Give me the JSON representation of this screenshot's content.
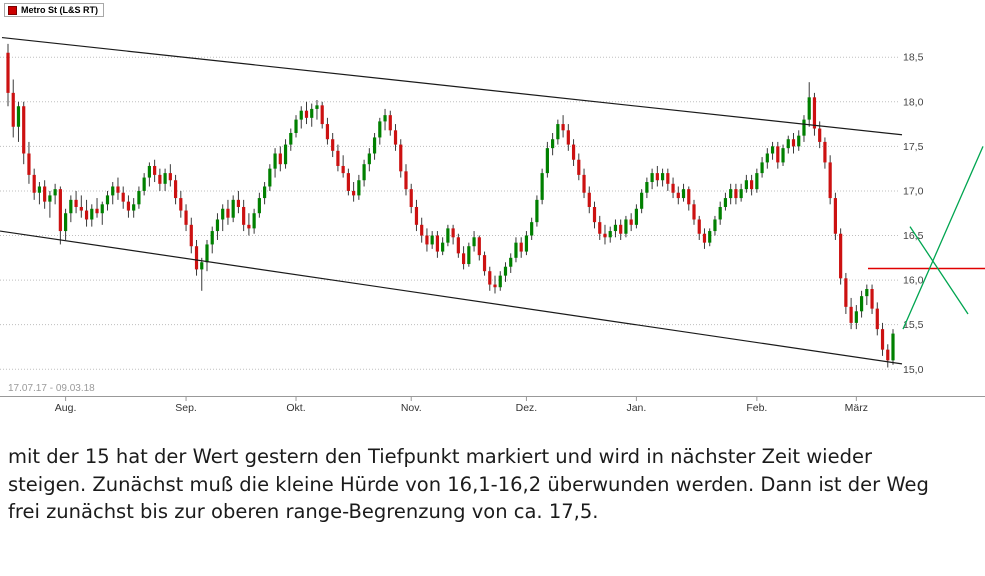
{
  "legend": {
    "label": "Metro St (L&S RT)",
    "marker_color": "#cc0000"
  },
  "commentary": {
    "lines": [
      "mit der 15 hat der Wert gestern den Tiefpunkt markiert und wird in nächster Zeit wieder",
      "steigen. Zunächst muß die kleine Hürde von 16,1-16,2 überwunden werden. Dann ist der Weg",
      "frei zunächst bis zur oberen range-Begrenzung von ca. 17,5."
    ]
  },
  "chart_data": {
    "type": "candlestick",
    "title": "Metro St (L&S RT)",
    "date_range": "17.07.17 - 09.03.18",
    "ylim": [
      14.7,
      18.85
    ],
    "y_ticks": [
      15.0,
      15.5,
      16.0,
      16.5,
      17.0,
      17.5,
      18.0,
      18.5
    ],
    "y_tick_labels": [
      "15,0",
      "15,5",
      "16,0",
      "16,5",
      "17,0",
      "17,5",
      "18,0",
      "18,5"
    ],
    "x_ticks": [
      {
        "label": "Aug.",
        "index": 11
      },
      {
        "label": "Sep.",
        "index": 34
      },
      {
        "label": "Okt.",
        "index": 55
      },
      {
        "label": "Nov.",
        "index": 77
      },
      {
        "label": "Dez.",
        "index": 99
      },
      {
        "label": "Jan.",
        "index": 120
      },
      {
        "label": "Feb.",
        "index": 143
      },
      {
        "label": "März",
        "index": 162
      }
    ],
    "colors": {
      "up": "#008000",
      "down": "#cc1111",
      "wick": "#3a3a3a",
      "grid": "#bfbfbf",
      "axis": "#999999",
      "trend": "#1a1a1a",
      "resistance": "#e00000",
      "projection": "#00a550",
      "labels": "#444444",
      "date": "#9a9a9a"
    },
    "candles": [
      [
        18.55,
        18.65,
        17.95,
        18.1
      ],
      [
        18.1,
        18.25,
        17.6,
        17.72
      ],
      [
        17.72,
        18.0,
        17.55,
        17.95
      ],
      [
        17.95,
        18.0,
        17.3,
        17.42
      ],
      [
        17.42,
        17.55,
        17.08,
        17.18
      ],
      [
        17.18,
        17.25,
        16.9,
        16.98
      ],
      [
        16.98,
        17.1,
        16.85,
        17.05
      ],
      [
        17.05,
        17.12,
        16.8,
        16.88
      ],
      [
        16.88,
        17.0,
        16.7,
        16.95
      ],
      [
        16.95,
        17.08,
        16.85,
        17.02
      ],
      [
        17.02,
        17.05,
        16.4,
        16.55
      ],
      [
        16.55,
        16.8,
        16.45,
        16.75
      ],
      [
        16.75,
        16.95,
        16.65,
        16.9
      ],
      [
        16.9,
        17.0,
        16.75,
        16.82
      ],
      [
        16.82,
        16.95,
        16.7,
        16.78
      ],
      [
        16.78,
        16.9,
        16.6,
        16.68
      ],
      [
        16.68,
        16.85,
        16.6,
        16.8
      ],
      [
        16.8,
        16.92,
        16.7,
        16.75
      ],
      [
        16.75,
        16.88,
        16.62,
        16.85
      ],
      [
        16.85,
        17.0,
        16.78,
        16.95
      ],
      [
        16.95,
        17.1,
        16.85,
        17.05
      ],
      [
        17.05,
        17.15,
        16.9,
        16.98
      ],
      [
        16.98,
        17.05,
        16.8,
        16.88
      ],
      [
        16.88,
        16.95,
        16.7,
        16.78
      ],
      [
        16.78,
        16.92,
        16.7,
        16.85
      ],
      [
        16.85,
        17.05,
        16.8,
        17.0
      ],
      [
        17.0,
        17.2,
        16.95,
        17.15
      ],
      [
        17.15,
        17.32,
        17.05,
        17.28
      ],
      [
        17.28,
        17.35,
        17.1,
        17.18
      ],
      [
        17.18,
        17.25,
        17.0,
        17.08
      ],
      [
        17.08,
        17.25,
        17.0,
        17.2
      ],
      [
        17.2,
        17.3,
        17.05,
        17.12
      ],
      [
        17.12,
        17.18,
        16.85,
        16.92
      ],
      [
        16.92,
        17.0,
        16.7,
        16.78
      ],
      [
        16.78,
        16.85,
        16.55,
        16.62
      ],
      [
        16.62,
        16.7,
        16.3,
        16.38
      ],
      [
        16.38,
        16.45,
        16.05,
        16.12
      ],
      [
        16.12,
        16.25,
        15.88,
        16.2
      ],
      [
        16.2,
        16.45,
        16.1,
        16.4
      ],
      [
        16.4,
        16.6,
        16.3,
        16.55
      ],
      [
        16.55,
        16.75,
        16.45,
        16.68
      ],
      [
        16.68,
        16.85,
        16.55,
        16.8
      ],
      [
        16.8,
        16.9,
        16.62,
        16.7
      ],
      [
        16.7,
        16.95,
        16.65,
        16.9
      ],
      [
        16.9,
        17.0,
        16.75,
        16.82
      ],
      [
        16.82,
        16.9,
        16.55,
        16.62
      ],
      [
        16.62,
        16.75,
        16.5,
        16.58
      ],
      [
        16.58,
        16.8,
        16.52,
        16.75
      ],
      [
        16.75,
        16.98,
        16.7,
        16.92
      ],
      [
        16.92,
        17.1,
        16.85,
        17.05
      ],
      [
        17.05,
        17.3,
        17.0,
        17.25
      ],
      [
        17.25,
        17.48,
        17.15,
        17.42
      ],
      [
        17.42,
        17.5,
        17.22,
        17.3
      ],
      [
        17.3,
        17.58,
        17.25,
        17.52
      ],
      [
        17.52,
        17.7,
        17.45,
        17.65
      ],
      [
        17.65,
        17.85,
        17.6,
        17.8
      ],
      [
        17.8,
        17.95,
        17.7,
        17.9
      ],
      [
        17.9,
        18.0,
        17.75,
        17.82
      ],
      [
        17.82,
        17.98,
        17.72,
        17.92
      ],
      [
        17.92,
        18.02,
        17.8,
        17.96
      ],
      [
        17.96,
        18.0,
        17.7,
        17.75
      ],
      [
        17.75,
        17.82,
        17.52,
        17.58
      ],
      [
        17.58,
        17.65,
        17.38,
        17.45
      ],
      [
        17.45,
        17.52,
        17.22,
        17.28
      ],
      [
        17.28,
        17.4,
        17.15,
        17.2
      ],
      [
        17.2,
        17.25,
        16.95,
        17.0
      ],
      [
        17.0,
        17.1,
        16.88,
        16.95
      ],
      [
        16.95,
        17.18,
        16.9,
        17.12
      ],
      [
        17.12,
        17.35,
        17.05,
        17.3
      ],
      [
        17.3,
        17.48,
        17.22,
        17.42
      ],
      [
        17.42,
        17.65,
        17.35,
        17.6
      ],
      [
        17.6,
        17.82,
        17.52,
        17.78
      ],
      [
        17.78,
        17.92,
        17.68,
        17.85
      ],
      [
        17.85,
        17.9,
        17.62,
        17.68
      ],
      [
        17.68,
        17.75,
        17.45,
        17.52
      ],
      [
        17.52,
        17.58,
        17.15,
        17.22
      ],
      [
        17.22,
        17.3,
        16.95,
        17.02
      ],
      [
        17.02,
        17.08,
        16.75,
        16.82
      ],
      [
        16.82,
        16.9,
        16.55,
        16.62
      ],
      [
        16.62,
        16.7,
        16.42,
        16.5
      ],
      [
        16.5,
        16.58,
        16.32,
        16.4
      ],
      [
        16.4,
        16.55,
        16.35,
        16.5
      ],
      [
        16.5,
        16.55,
        16.25,
        16.32
      ],
      [
        16.32,
        16.48,
        16.28,
        16.42
      ],
      [
        16.42,
        16.62,
        16.38,
        16.58
      ],
      [
        16.58,
        16.62,
        16.4,
        16.48
      ],
      [
        16.48,
        16.52,
        16.25,
        16.3
      ],
      [
        16.3,
        16.38,
        16.12,
        16.18
      ],
      [
        16.18,
        16.42,
        16.15,
        16.38
      ],
      [
        16.38,
        16.55,
        16.32,
        16.48
      ],
      [
        16.48,
        16.5,
        16.22,
        16.28
      ],
      [
        16.28,
        16.32,
        16.05,
        16.1
      ],
      [
        16.1,
        16.15,
        15.88,
        15.95
      ],
      [
        15.95,
        16.05,
        15.85,
        15.92
      ],
      [
        15.92,
        16.1,
        15.88,
        16.05
      ],
      [
        16.05,
        16.2,
        15.98,
        16.15
      ],
      [
        16.15,
        16.3,
        16.08,
        16.25
      ],
      [
        16.25,
        16.48,
        16.2,
        16.42
      ],
      [
        16.42,
        16.48,
        16.25,
        16.32
      ],
      [
        16.32,
        16.55,
        16.28,
        16.5
      ],
      [
        16.5,
        16.7,
        16.45,
        16.65
      ],
      [
        16.65,
        16.95,
        16.6,
        16.9
      ],
      [
        16.9,
        17.25,
        16.85,
        17.2
      ],
      [
        17.2,
        17.55,
        17.15,
        17.48
      ],
      [
        17.48,
        17.65,
        17.4,
        17.58
      ],
      [
        17.58,
        17.8,
        17.52,
        17.75
      ],
      [
        17.75,
        17.85,
        17.6,
        17.68
      ],
      [
        17.68,
        17.75,
        17.45,
        17.52
      ],
      [
        17.52,
        17.58,
        17.28,
        17.35
      ],
      [
        17.35,
        17.42,
        17.12,
        17.18
      ],
      [
        17.18,
        17.25,
        16.92,
        16.98
      ],
      [
        16.98,
        17.05,
        16.75,
        16.82
      ],
      [
        16.82,
        16.88,
        16.58,
        16.65
      ],
      [
        16.65,
        16.72,
        16.45,
        16.52
      ],
      [
        16.52,
        16.62,
        16.4,
        16.48
      ],
      [
        16.48,
        16.6,
        16.42,
        16.55
      ],
      [
        16.55,
        16.68,
        16.48,
        16.62
      ],
      [
        16.62,
        16.68,
        16.45,
        16.52
      ],
      [
        16.52,
        16.72,
        16.48,
        16.68
      ],
      [
        16.68,
        16.75,
        16.55,
        16.62
      ],
      [
        16.62,
        16.85,
        16.58,
        16.8
      ],
      [
        16.8,
        17.02,
        16.75,
        16.98
      ],
      [
        16.98,
        17.15,
        16.92,
        17.1
      ],
      [
        17.1,
        17.25,
        17.02,
        17.2
      ],
      [
        17.2,
        17.28,
        17.05,
        17.12
      ],
      [
        17.12,
        17.25,
        17.05,
        17.2
      ],
      [
        17.2,
        17.25,
        17.0,
        17.08
      ],
      [
        17.08,
        17.15,
        16.92,
        16.98
      ],
      [
        16.98,
        17.05,
        16.85,
        16.92
      ],
      [
        16.92,
        17.08,
        16.88,
        17.02
      ],
      [
        17.02,
        17.05,
        16.78,
        16.85
      ],
      [
        16.85,
        16.9,
        16.62,
        16.68
      ],
      [
        16.68,
        16.72,
        16.45,
        16.52
      ],
      [
        16.52,
        16.58,
        16.35,
        16.42
      ],
      [
        16.42,
        16.58,
        16.38,
        16.55
      ],
      [
        16.55,
        16.72,
        16.5,
        16.68
      ],
      [
        16.68,
        16.88,
        16.62,
        16.82
      ],
      [
        16.82,
        16.98,
        16.78,
        16.92
      ],
      [
        16.92,
        17.08,
        16.85,
        17.02
      ],
      [
        17.02,
        17.08,
        16.85,
        16.92
      ],
      [
        16.92,
        17.08,
        16.88,
        17.02
      ],
      [
        17.02,
        17.18,
        16.98,
        17.12
      ],
      [
        17.12,
        17.18,
        16.95,
        17.02
      ],
      [
        17.02,
        17.25,
        16.98,
        17.2
      ],
      [
        17.2,
        17.38,
        17.15,
        17.32
      ],
      [
        17.32,
        17.48,
        17.25,
        17.42
      ],
      [
        17.42,
        17.55,
        17.35,
        17.5
      ],
      [
        17.5,
        17.55,
        17.25,
        17.32
      ],
      [
        17.32,
        17.52,
        17.28,
        17.48
      ],
      [
        17.48,
        17.62,
        17.42,
        17.58
      ],
      [
        17.58,
        17.65,
        17.42,
        17.5
      ],
      [
        17.5,
        17.68,
        17.45,
        17.62
      ],
      [
        17.62,
        17.85,
        17.55,
        17.8
      ],
      [
        17.8,
        18.22,
        17.72,
        18.05
      ],
      [
        18.05,
        18.1,
        17.62,
        17.7
      ],
      [
        17.7,
        17.78,
        17.48,
        17.55
      ],
      [
        17.55,
        17.6,
        17.25,
        17.32
      ],
      [
        17.32,
        17.4,
        16.85,
        16.92
      ],
      [
        16.92,
        16.98,
        16.45,
        16.52
      ],
      [
        16.52,
        16.58,
        15.95,
        16.02
      ],
      [
        16.02,
        16.08,
        15.62,
        15.7
      ],
      [
        15.7,
        15.8,
        15.45,
        15.52
      ],
      [
        15.52,
        15.72,
        15.45,
        15.65
      ],
      [
        15.65,
        15.88,
        15.58,
        15.82
      ],
      [
        15.82,
        15.95,
        15.72,
        15.9
      ],
      [
        15.9,
        15.95,
        15.62,
        15.68
      ],
      [
        15.68,
        15.75,
        15.38,
        15.45
      ],
      [
        15.45,
        15.52,
        15.15,
        15.22
      ],
      [
        15.22,
        15.28,
        15.02,
        15.1
      ],
      [
        15.1,
        15.45,
        15.05,
        15.4
      ]
    ],
    "overlays": {
      "trendlines": [
        {
          "x1": 2,
          "v1": 18.72,
          "x2": 902,
          "v2": 17.63
        },
        {
          "x1": 0,
          "v1": 16.55,
          "x2": 902,
          "v2": 15.06
        }
      ],
      "resistance": {
        "x1": 868,
        "x2": 985,
        "value": 16.13
      },
      "projections": [
        {
          "x1": 903,
          "v1": 15.45,
          "x2": 983,
          "v2": 17.5
        },
        {
          "x1": 910,
          "v1": 16.6,
          "x2": 968,
          "v2": 15.62
        }
      ]
    }
  }
}
